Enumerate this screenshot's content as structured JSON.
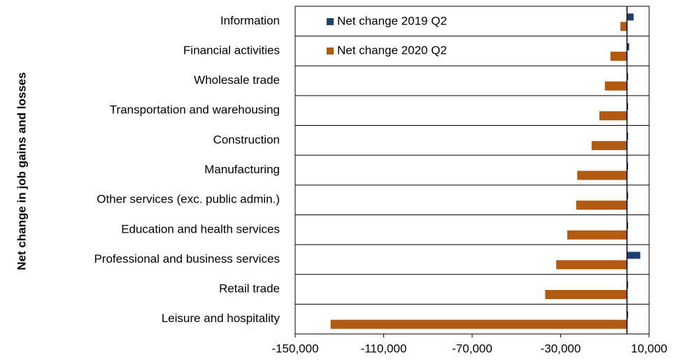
{
  "chart_data": {
    "type": "hbar",
    "y_label": "Net change in job gains and losses",
    "categories": [
      "Information",
      "Financial activities",
      "Wholesale trade",
      "Transportation and warehousing",
      "Construction",
      "Manufacturing",
      "Other services (exc. public admin.)",
      "Education and health services",
      "Professional and business services",
      "Retail trade",
      "Leisure and hospitality"
    ],
    "series": [
      {
        "name": "Net change 2019 Q2",
        "color": "#1f3f6e",
        "values": [
          3000,
          1000,
          500,
          500,
          500,
          500,
          500,
          500,
          6000,
          500,
          500
        ]
      },
      {
        "name": "Net change 2020 Q2",
        "color": "#b35a12",
        "values": [
          -3000,
          -7500,
          -10000,
          -12500,
          -16000,
          -22500,
          -23000,
          -27000,
          -32000,
          -37000,
          -134000
        ]
      }
    ],
    "xlim": [
      -150000,
      10000
    ],
    "xticks": [
      {
        "value": -150000,
        "label": "-150,000"
      },
      {
        "value": -110000,
        "label": "-110,000"
      },
      {
        "value": -70000,
        "label": "-70,000"
      },
      {
        "value": -30000,
        "label": "-30,000"
      },
      {
        "value": 10000,
        "label": "10,000"
      }
    ],
    "legend": "top-left"
  }
}
